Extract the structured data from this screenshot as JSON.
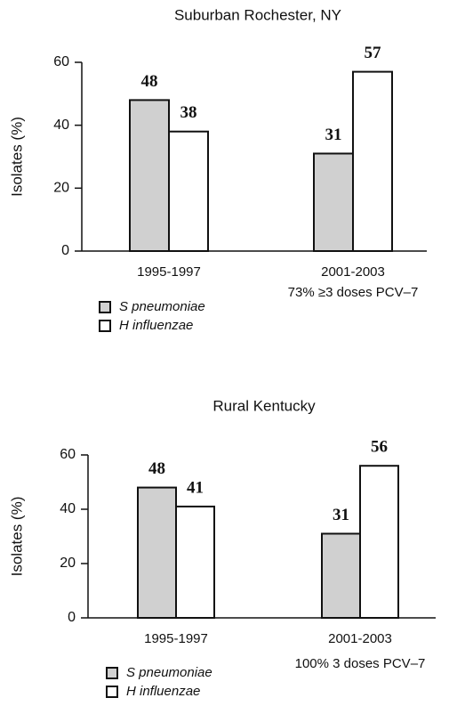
{
  "chart_data": [
    {
      "type": "bar",
      "title": "Suburban Rochester, NY",
      "y_label": "Isolates (%)",
      "categories": [
        "1995-1997",
        "2001-2003"
      ],
      "annotation": "73% ≥3 doses PCV–7",
      "series": [
        {
          "name": "S pneumoniae",
          "color": "#d0d0d0",
          "values": [
            48,
            31
          ]
        },
        {
          "name": "H influenzae",
          "color": "#ffffff",
          "values": [
            38,
            57
          ]
        }
      ],
      "ylim": [
        0,
        60
      ],
      "yticks": [
        0,
        20,
        40,
        60
      ]
    },
    {
      "type": "bar",
      "title": "Rural Kentucky",
      "y_label": "Isolates (%)",
      "categories": [
        "1995-1997",
        "2001-2003"
      ],
      "annotation": "100%  3 doses PCV–7",
      "series": [
        {
          "name": "S pneumoniae",
          "color": "#d0d0d0",
          "values": [
            48,
            31
          ]
        },
        {
          "name": "H influenzae",
          "color": "#ffffff",
          "values": [
            41,
            56
          ]
        }
      ],
      "ylim": [
        0,
        60
      ],
      "yticks": [
        0,
        20,
        40,
        60
      ]
    }
  ]
}
